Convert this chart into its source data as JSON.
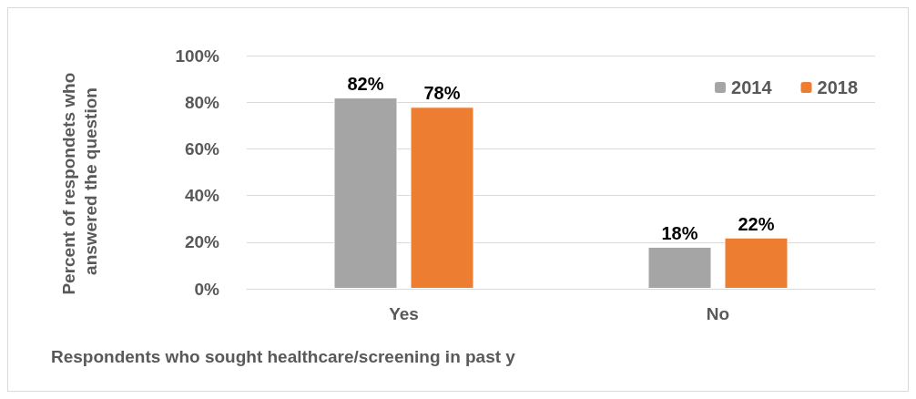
{
  "chart_data": {
    "type": "bar",
    "xlabel": "Respondents who sought healthcare/screening in past y",
    "ylabel": "Percent of respondets who answered the question",
    "categories": [
      "Yes",
      "No"
    ],
    "series": [
      {
        "name": "2014",
        "color": "#a5a5a5",
        "values": [
          82,
          18
        ],
        "value_labels": [
          "82%",
          "18%"
        ]
      },
      {
        "name": "2018",
        "color": "#ed7d31",
        "values": [
          78,
          22
        ],
        "value_labels": [
          "78%",
          "22%"
        ]
      }
    ],
    "ylim": [
      0,
      100
    ],
    "yticks": [
      {
        "value": 0,
        "label": "0%"
      },
      {
        "value": 20,
        "label": "20%"
      },
      {
        "value": 40,
        "label": "40%"
      },
      {
        "value": 60,
        "label": "60%"
      },
      {
        "value": 80,
        "label": "80%"
      },
      {
        "value": 100,
        "label": "100%"
      }
    ],
    "grid": "y",
    "legend": "top right"
  }
}
